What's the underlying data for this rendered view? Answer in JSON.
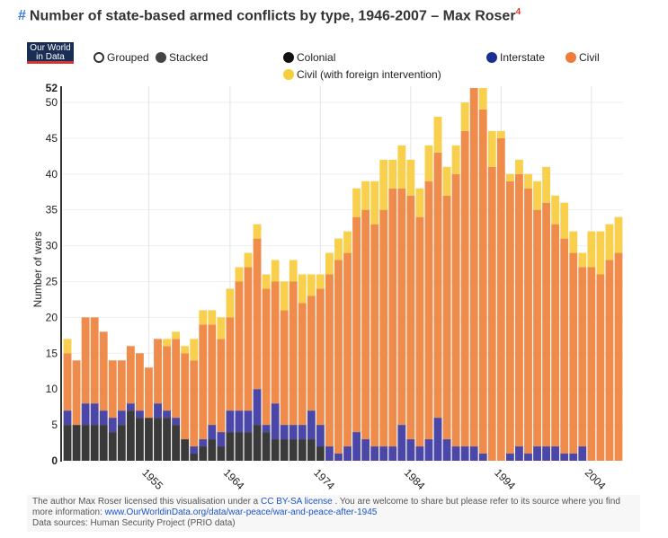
{
  "header": {
    "hash": "#",
    "title": "Number of state-based armed conflicts by type, 1946-2007 – Max Roser",
    "footnote": "4"
  },
  "logo": {
    "line1": "Our World",
    "line2": "in Data"
  },
  "toggle": {
    "grouped_label": "Grouped",
    "stacked_label": "Stacked",
    "selected": "Stacked"
  },
  "legend": [
    {
      "label": "Colonial",
      "color": "#111111"
    },
    {
      "label": "Interstate",
      "color": "#1b2f8f"
    },
    {
      "label": "Civil",
      "color": "#ef7b3a"
    },
    {
      "label": "Civil (with foreign intervention)",
      "color": "#f7cd39"
    }
  ],
  "footer": {
    "line1_pre": "The author Max Roser licensed this visualisation under a ",
    "license_link": "CC BY-SA license",
    "line1_post": " . You are welcome to share but please refer to its source where you find more information: ",
    "source_link": "www.OurWorldinData.org/data/war-peace/war-and-peace-after-1945",
    "line3": "Data sources: Human Security Project (PRIO data)"
  },
  "chart_data": {
    "type": "bar",
    "stacked": true,
    "title": "Number of state-based armed conflicts by type, 1946-2007",
    "xlabel": "",
    "ylabel": "Number of wars",
    "ylim": [
      0,
      52
    ],
    "yticks": [
      0,
      5,
      10,
      15,
      20,
      25,
      30,
      35,
      40,
      45,
      50,
      52
    ],
    "xticks": [
      1955,
      1964,
      1974,
      1984,
      1994,
      2004
    ],
    "grid": true,
    "legend_position": "top",
    "categories": [
      1946,
      1947,
      1948,
      1949,
      1950,
      1951,
      1952,
      1953,
      1954,
      1955,
      1956,
      1957,
      1958,
      1959,
      1960,
      1961,
      1962,
      1963,
      1964,
      1965,
      1966,
      1967,
      1968,
      1969,
      1970,
      1971,
      1972,
      1973,
      1974,
      1975,
      1976,
      1977,
      1978,
      1979,
      1980,
      1981,
      1982,
      1983,
      1984,
      1985,
      1986,
      1987,
      1988,
      1989,
      1990,
      1991,
      1992,
      1993,
      1994,
      1995,
      1996,
      1997,
      1998,
      1999,
      2000,
      2001,
      2002,
      2003,
      2004,
      2005,
      2006,
      2007
    ],
    "series": [
      {
        "name": "Colonial",
        "color": "#3a3a3a",
        "values": [
          5,
          5,
          5,
          5,
          5,
          4,
          5,
          7,
          6,
          6,
          6,
          6,
          5,
          3,
          1,
          2,
          3,
          2,
          4,
          4,
          4,
          5,
          4,
          3,
          3,
          3,
          3,
          3,
          2,
          0,
          0,
          0,
          0,
          0,
          0,
          0,
          0,
          0,
          0,
          0,
          0,
          0,
          0,
          0,
          0,
          0,
          0,
          0,
          0,
          0,
          0,
          0,
          0,
          0,
          0,
          0,
          0,
          0,
          0,
          0,
          0,
          0
        ]
      },
      {
        "name": "Interstate",
        "color": "#4a47a8",
        "values": [
          2,
          0,
          3,
          3,
          2,
          2,
          2,
          1,
          1,
          0,
          2,
          1,
          1,
          0,
          1,
          1,
          2,
          2,
          3,
          3,
          3,
          5,
          1,
          5,
          2,
          2,
          2,
          4,
          3,
          2,
          1,
          2,
          4,
          3,
          2,
          2,
          2,
          5,
          3,
          2,
          3,
          6,
          3,
          2,
          2,
          2,
          1,
          0,
          0,
          1,
          2,
          1,
          2,
          2,
          2,
          1,
          1,
          2,
          0,
          0,
          0,
          0
        ]
      },
      {
        "name": "Civil",
        "color": "#ef8c4c",
        "values": [
          8,
          9,
          12,
          12,
          11,
          8,
          7,
          8,
          8,
          7,
          9,
          9,
          11,
          12,
          12,
          16,
          14,
          13,
          13,
          18,
          20,
          21,
          19,
          17,
          16,
          20,
          17,
          16,
          19,
          24,
          27,
          27,
          30,
          32,
          31,
          33,
          36,
          33,
          34,
          32,
          36,
          37,
          34,
          38,
          44,
          50,
          48,
          41,
          45,
          38,
          38,
          37,
          33,
          34,
          31,
          30,
          28,
          25,
          27,
          26,
          28,
          29
        ]
      },
      {
        "name": "Civil (with foreign intervention)",
        "color": "#f9d04e",
        "values": [
          2,
          0,
          0,
          0,
          0,
          0,
          0,
          0,
          0,
          0,
          0,
          1,
          1,
          1,
          3,
          2,
          2,
          3,
          4,
          2,
          2,
          2,
          2,
          3,
          4,
          3,
          4,
          3,
          2,
          3,
          3,
          3,
          4,
          4,
          6,
          7,
          4,
          6,
          5,
          4,
          5,
          5,
          4,
          4,
          4,
          0,
          3,
          5,
          1,
          1,
          2,
          2,
          4,
          5,
          4,
          5,
          3,
          2,
          5,
          6,
          5,
          5
        ]
      }
    ]
  }
}
